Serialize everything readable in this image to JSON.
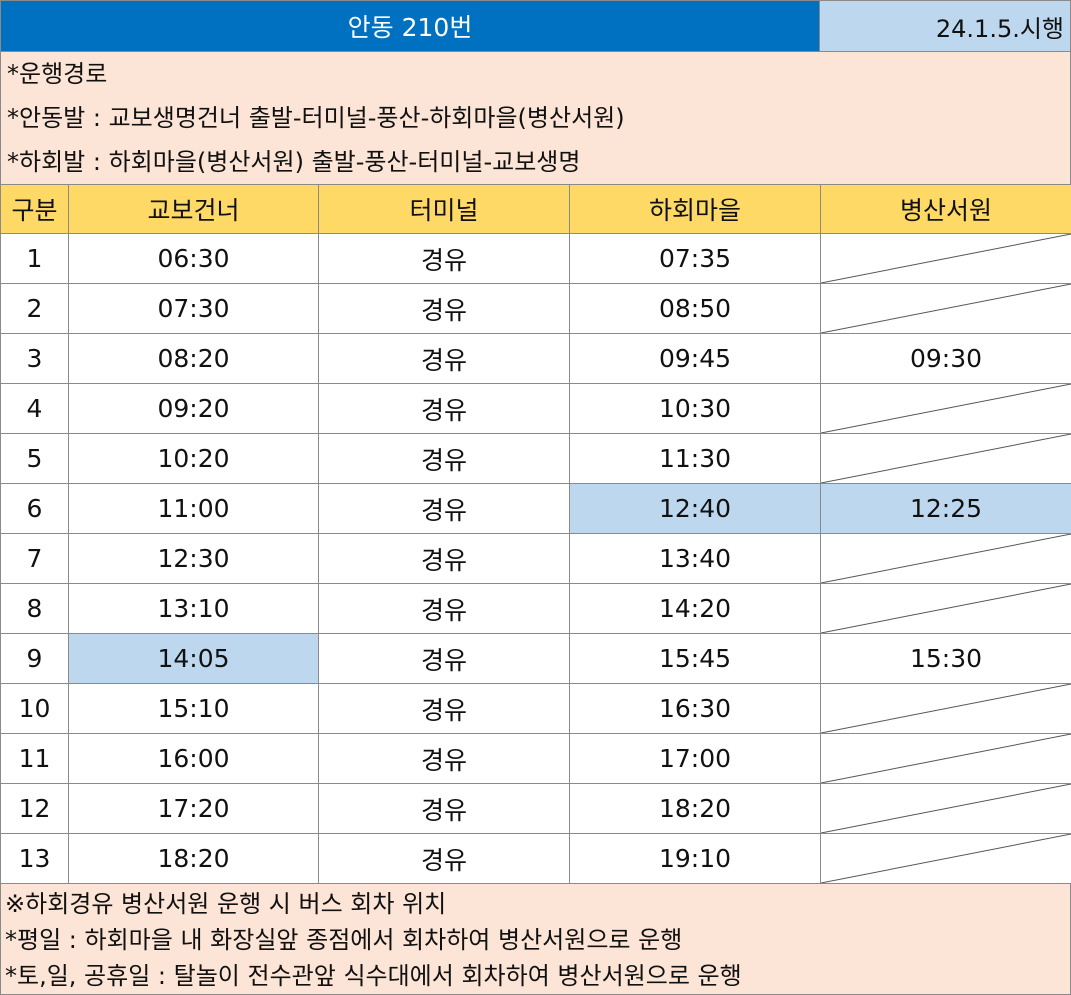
{
  "header": {
    "title": "안동 210번",
    "effective_date": "24.1.5.시행"
  },
  "route_notes": [
    "*운행경로",
    "*안동발 : 교보생명건너 출발-터미널-풍산-하회마을(병산서원)",
    "*하회발 : 하회마을(병산서원) 출발-풍산-터미널-교보생명"
  ],
  "table": {
    "columns": [
      "구분",
      "교보건너",
      "터미널",
      "하회마을",
      "병산서원"
    ],
    "rows": [
      {
        "no": "1",
        "gyobo": "06:30",
        "terminal": "경유",
        "hahoe": "07:35",
        "byeongsan": ""
      },
      {
        "no": "2",
        "gyobo": "07:30",
        "terminal": "경유",
        "hahoe": "08:50",
        "byeongsan": ""
      },
      {
        "no": "3",
        "gyobo": "08:20",
        "terminal": "경유",
        "hahoe": "09:45",
        "byeongsan": "09:30"
      },
      {
        "no": "4",
        "gyobo": "09:20",
        "terminal": "경유",
        "hahoe": "10:30",
        "byeongsan": ""
      },
      {
        "no": "5",
        "gyobo": "10:20",
        "terminal": "경유",
        "hahoe": "11:30",
        "byeongsan": ""
      },
      {
        "no": "6",
        "gyobo": "11:00",
        "terminal": "경유",
        "hahoe": "12:40",
        "byeongsan": "12:25"
      },
      {
        "no": "7",
        "gyobo": "12:30",
        "terminal": "경유",
        "hahoe": "13:40",
        "byeongsan": ""
      },
      {
        "no": "8",
        "gyobo": "13:10",
        "terminal": "경유",
        "hahoe": "14:20",
        "byeongsan": ""
      },
      {
        "no": "9",
        "gyobo": "14:05",
        "terminal": "경유",
        "hahoe": "15:45",
        "byeongsan": "15:30"
      },
      {
        "no": "10",
        "gyobo": "15:10",
        "terminal": "경유",
        "hahoe": "16:30",
        "byeongsan": ""
      },
      {
        "no": "11",
        "gyobo": "16:00",
        "terminal": "경유",
        "hahoe": "17:00",
        "byeongsan": ""
      },
      {
        "no": "12",
        "gyobo": "17:20",
        "terminal": "경유",
        "hahoe": "18:20",
        "byeongsan": ""
      },
      {
        "no": "13",
        "gyobo": "18:20",
        "terminal": "경유",
        "hahoe": "19:10",
        "byeongsan": ""
      }
    ],
    "highlighted_cells": [
      {
        "row": "6",
        "column": "하회마을"
      },
      {
        "row": "6",
        "column": "병산서원"
      },
      {
        "row": "9",
        "column": "교보건너"
      }
    ]
  },
  "turnaround_notes": [
    "※하회경유 병산서원 운행 시 버스 회차 위치",
    "*평일 : 하회마을 내 화장실앞 종점에서 회차하여 병산서원으로 운행",
    "*토,일, 공휴일 : 탈놀이 전수관앞 식수대에서 회차하여 병산서원으로 운행"
  ],
  "colors": {
    "title_bg": "#0071c1",
    "date_bg": "#bdd7ee",
    "notes_bg": "#fce4d6",
    "header_row_bg": "#ffd966",
    "highlight_bg": "#bdd7ee",
    "border": "#8a8a8a"
  }
}
